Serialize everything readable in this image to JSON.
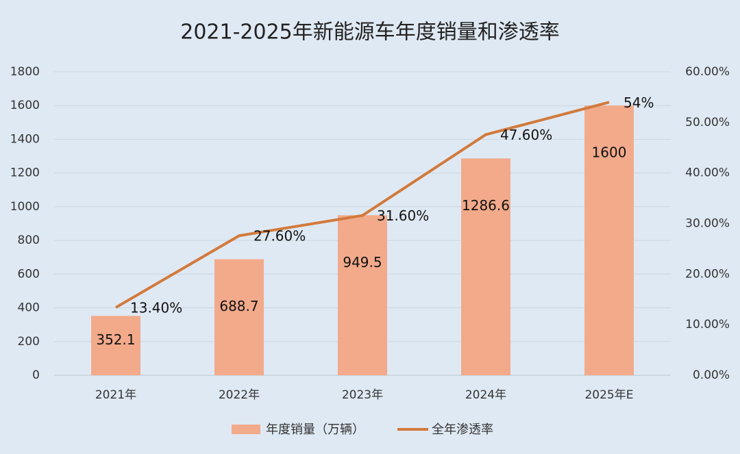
{
  "chart_data": {
    "type": "bar",
    "title": "2021-2025年新能源车年度销量和渗透率",
    "categories": [
      "2021年",
      "2022年",
      "2023年",
      "2024年",
      "2025年E"
    ],
    "series": [
      {
        "name": "年度销量（万辆）",
        "type": "bar",
        "color": "#f2aa8b",
        "values": [
          352.1,
          688.7,
          949.5,
          1286.6,
          1600
        ]
      },
      {
        "name": "全年渗透率",
        "type": "line",
        "axis": "y2",
        "color": "#d27a3c",
        "values": [
          13.4,
          27.6,
          31.6,
          47.6,
          54
        ],
        "value_labels": [
          "13.40%",
          "27.60%",
          "31.60%",
          "47.60%",
          "54%"
        ]
      }
    ],
    "ylim": [
      0,
      1800
    ],
    "yticks": [
      0,
      200,
      400,
      600,
      800,
      1000,
      1200,
      1400,
      1600,
      1800
    ],
    "y2lim": [
      0,
      60
    ],
    "y2ticks": [
      {
        "value": 0,
        "label": "0.00%"
      },
      {
        "value": 10,
        "label": "10.00%"
      },
      {
        "value": 20,
        "label": "20.00%"
      },
      {
        "value": 30,
        "label": "30.00%"
      },
      {
        "value": 40,
        "label": "40.00%"
      },
      {
        "value": 50,
        "label": "50.00%"
      },
      {
        "value": 60,
        "label": "60.00%"
      }
    ],
    "grid": true,
    "legend": "bottom"
  }
}
